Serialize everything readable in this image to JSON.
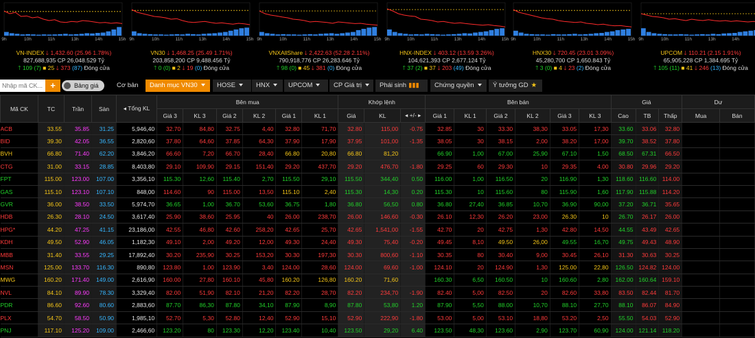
{
  "indices": [
    {
      "name": "VN-INDEX",
      "value": "1,432.60",
      "change": "(25.96 1.78%)",
      "vol": "827,688,935",
      "cp": "CP 26,048.529 Tỷ",
      "adv": "109",
      "adv2": "(7)",
      "ref": "25",
      "dec": "373",
      "dec2": "(87)",
      "status": "Đóng cửa",
      "ref_level": 0.22,
      "series": [
        0.2,
        0.3,
        0.25,
        0.4,
        0.38,
        0.45,
        0.42,
        0.5,
        0.55,
        0.52,
        0.6,
        0.62,
        0.58,
        0.6,
        0.55,
        0.57,
        0.6,
        0.63,
        0.62,
        0.65,
        0.63,
        0.66
      ],
      "bars": [
        0.3,
        0.2,
        0.15,
        0.1,
        0.12,
        0.1,
        0.08,
        0.1,
        0.09,
        0.1,
        0.12,
        0.15,
        0.1,
        0.12,
        0.15,
        0.2,
        0.18,
        0.22,
        0.25,
        0.35,
        0.5,
        0.7
      ]
    },
    {
      "name": "VN30",
      "value": "1,468.25",
      "change": "(25.49 1.71%)",
      "vol": "203,858,200",
      "cp": "CP 9,488.456 Tỷ",
      "adv": "0",
      "adv2": "(0)",
      "ref": "2",
      "dec": "19",
      "dec2": "(0)",
      "status": "Đóng cửa",
      "ref_level": 0.18,
      "series": [
        0.15,
        0.25,
        0.3,
        0.35,
        0.4,
        0.42,
        0.45,
        0.5,
        0.48,
        0.55,
        0.6,
        0.62,
        0.6,
        0.58,
        0.62,
        0.65,
        0.63,
        0.66,
        0.68,
        0.65,
        0.67,
        0.7
      ],
      "bars": [
        0.35,
        0.2,
        0.15,
        0.12,
        0.1,
        0.1,
        0.08,
        0.1,
        0.12,
        0.1,
        0.15,
        0.12,
        0.1,
        0.15,
        0.18,
        0.2,
        0.25,
        0.3,
        0.4,
        0.5,
        0.6,
        0.65
      ]
    },
    {
      "name": "VNXAllShare",
      "value": "2,422.63",
      "change": "(52.28 2.11%)",
      "vol": "790,918,776",
      "cp": "CP 26,283.646 Tỷ",
      "adv": "98",
      "adv2": "(0)",
      "ref": "45",
      "dec": "381",
      "dec2": "(0)",
      "status": "Đóng cửa",
      "ref_level": 0.2,
      "series": [
        0.2,
        0.3,
        0.35,
        0.38,
        0.42,
        0.45,
        0.5,
        0.52,
        0.55,
        0.6,
        0.58,
        0.6,
        0.62,
        0.65,
        0.6,
        0.62,
        0.64,
        0.66,
        0.65,
        0.68,
        0.7,
        0.72
      ],
      "bars": [
        0.3,
        0.2,
        0.15,
        0.1,
        0.12,
        0.1,
        0.1,
        0.08,
        0.1,
        0.12,
        0.1,
        0.15,
        0.18,
        0.2,
        0.15,
        0.2,
        0.25,
        0.3,
        0.45,
        0.55,
        0.65,
        0.7
      ]
    },
    {
      "name": "HNX-INDEX",
      "value": "403.12",
      "change": "(13.59 3.26%)",
      "vol": "104,621,393",
      "cp": "CP 2,677.124 Tỷ",
      "adv": "37",
      "adv2": "(2)",
      "ref": "37",
      "dec": "203",
      "dec2": "(49)",
      "status": "Đóng cửa",
      "ref_level": 0.15,
      "series": [
        0.12,
        0.2,
        0.3,
        0.35,
        0.38,
        0.4,
        0.5,
        0.52,
        0.55,
        0.6,
        0.58,
        0.62,
        0.65,
        0.63,
        0.66,
        0.68,
        0.7,
        0.72,
        0.7,
        0.73,
        0.75,
        0.78
      ],
      "bars": [
        0.5,
        0.3,
        0.2,
        0.15,
        0.1,
        0.12,
        0.1,
        0.15,
        0.12,
        0.1,
        0.08,
        0.1,
        0.12,
        0.15,
        0.2,
        0.18,
        0.25,
        0.3,
        0.35,
        0.45,
        0.55,
        0.6
      ]
    },
    {
      "name": "HNX30",
      "value": "720.45",
      "change": "(23.01 3.09%)",
      "vol": "45,280,700",
      "cp": "CP 1,650.843 Tỷ",
      "adv": "3",
      "adv2": "(0)",
      "ref": "4",
      "dec": "23",
      "dec2": "(2)",
      "status": "Đóng cửa",
      "ref_level": 0.18,
      "series": [
        0.15,
        0.25,
        0.3,
        0.35,
        0.4,
        0.45,
        0.48,
        0.5,
        0.55,
        0.58,
        0.6,
        0.62,
        0.6,
        0.65,
        0.67,
        0.7,
        0.68,
        0.72,
        0.74,
        0.73,
        0.76,
        0.78
      ],
      "bars": [
        0.4,
        0.25,
        0.15,
        0.12,
        0.1,
        0.1,
        0.08,
        0.12,
        0.1,
        0.1,
        0.12,
        0.15,
        0.1,
        0.12,
        0.15,
        0.2,
        0.22,
        0.3,
        0.35,
        0.45,
        0.5,
        0.55
      ]
    },
    {
      "name": "UPCOM",
      "value": "110.21",
      "change": "(2.15 1.91%)",
      "vol": "65,905,228",
      "cp": "CP 1,384.695 Tỷ",
      "adv": "105",
      "adv2": "(11)",
      "ref": "41",
      "dec": "246",
      "dec2": "(13)",
      "status": "Đóng cửa",
      "ref_level": 0.3,
      "series": [
        0.3,
        0.35,
        0.4,
        0.42,
        0.45,
        0.5,
        0.48,
        0.52,
        0.55,
        0.5,
        0.53,
        0.55,
        0.52,
        0.55,
        0.57,
        0.55,
        0.58,
        0.56,
        0.58,
        0.6,
        0.58,
        0.6
      ],
      "bars": [
        0.6,
        0.3,
        0.2,
        0.15,
        0.12,
        0.1,
        0.1,
        0.12,
        0.1,
        0.08,
        0.1,
        0.12,
        0.1,
        0.15,
        0.12,
        0.18,
        0.2,
        0.22,
        0.3,
        0.35,
        0.4,
        0.45
      ]
    }
  ],
  "axis_labels": [
    "9h",
    "10h",
    "11h",
    "13h",
    "14h",
    "15h"
  ],
  "toolbar": {
    "search_placeholder": "Nhập mã CK...",
    "plus": "+",
    "toggle": "Bảng giá",
    "basic": "Cơ bản",
    "tabs": [
      "Danh mục VN30",
      "HOSE",
      "HNX",
      "UPCOM",
      "CP Giá trị",
      "Phái sinh",
      "Chứng quyền",
      "Ý tưởng GD"
    ]
  },
  "headers": {
    "g1": [
      "Mã CK",
      "TC",
      "Trần",
      "Sàn",
      "Tổng KL"
    ],
    "groups": [
      "Bên mua",
      "Khớp lệnh",
      "Bên bán",
      "Giá",
      "Dư"
    ],
    "buy": [
      "Giá 3",
      "KL 3",
      "Giá 2",
      "KL 2",
      "Giá 1",
      "KL 1"
    ],
    "match": [
      "Giá",
      "KL",
      "+/-"
    ],
    "sell": [
      "Giá 1",
      "KL 1",
      "Giá 2",
      "KL 2",
      "Giá 3",
      "KL 3"
    ],
    "price": [
      "Cao",
      "TB",
      "Thấp"
    ],
    "du": [
      "Mua",
      "Bán"
    ]
  },
  "rows": [
    [
      "ACB",
      "33.55",
      "35.85",
      "31.25",
      "5,946,40",
      "32.70",
      "84,80",
      "32.75",
      "4,40",
      "32.80",
      "71,70",
      "32.80",
      "115,00",
      "-0.75",
      "32.85",
      "30",
      "33.30",
      "38,30",
      "33.05",
      "17,30",
      "33.60",
      "33.06",
      "32.80"
    ],
    [
      "BID",
      "39.30",
      "42.05",
      "36.55",
      "2,820,60",
      "37.80",
      "64,60",
      "37.85",
      "64,30",
      "37.90",
      "17,90",
      "37.95",
      "101,00",
      "-1.35",
      "38.05",
      "30",
      "38.15",
      "2,00",
      "38.20",
      "17,00",
      "39.70",
      "38.52",
      "37.80"
    ],
    [
      "BVH",
      "66.80",
      "71.40",
      "62.20",
      "3,846,20",
      "66.60",
      "7,20",
      "66.70",
      "28,40",
      "66.80",
      "20,80",
      "66.80",
      "81,20",
      "",
      "66.90",
      "1,00",
      "67.00",
      "25,90",
      "67.10",
      "1,50",
      "68.50",
      "67.31",
      "66.50"
    ],
    [
      "CTG",
      "31.00",
      "33.15",
      "28.85",
      "8,403,80",
      "29.10",
      "109,90",
      "29.15",
      "151,40",
      "29.20",
      "437,70",
      "29.20",
      "476,70",
      "-1.80",
      "29.25",
      "60",
      "29.30",
      "10",
      "29.35",
      "4,00",
      "30.80",
      "29.96",
      "29.20"
    ],
    [
      "FPT",
      "115.00",
      "123.00",
      "107.00",
      "3,356,10",
      "115.30",
      "12,60",
      "115.40",
      "2,70",
      "115.50",
      "29,10",
      "115.50",
      "344,40",
      "0.50",
      "116.00",
      "1,00",
      "116.50",
      "20",
      "116.90",
      "1,30",
      "118.60",
      "116.60",
      "114.00"
    ],
    [
      "GAS",
      "115.10",
      "123.10",
      "107.10",
      "848,00",
      "114.60",
      "90",
      "115.00",
      "13,50",
      "115.10",
      "2,40",
      "115.30",
      "14,30",
      "0.20",
      "115.30",
      "10",
      "115.60",
      "80",
      "115.90",
      "1,60",
      "117.90",
      "115.88",
      "114.20"
    ],
    [
      "GVR",
      "36.00",
      "38.50",
      "33.50",
      "5,974,70",
      "36.65",
      "1,00",
      "36.70",
      "53,60",
      "36.75",
      "1,80",
      "36.80",
      "56,50",
      "0.80",
      "36.80",
      "27,40",
      "36.85",
      "10,70",
      "36.90",
      "90,00",
      "37.20",
      "36.71",
      "35.65"
    ],
    [
      "HDB",
      "26.30",
      "28.10",
      "24.50",
      "3,617,40",
      "25.90",
      "38,60",
      "25.95",
      "40",
      "26.00",
      "238,70",
      "26.00",
      "146,60",
      "-0.30",
      "26.10",
      "12,30",
      "26.20",
      "23,00",
      "26.30",
      "10",
      "26.70",
      "26.17",
      "26.00"
    ],
    [
      "HPG*",
      "44.20",
      "47.25",
      "41.15",
      "23,186,00",
      "42.55",
      "46,80",
      "42.60",
      "258,20",
      "42.65",
      "25,70",
      "42.65",
      "1,541,00",
      "-1.55",
      "42.70",
      "20",
      "42.75",
      "1,30",
      "42.80",
      "14,50",
      "44.55",
      "43.49",
      "42.65"
    ],
    [
      "KDH",
      "49.50",
      "52.90",
      "46.05",
      "1,182,30",
      "49.10",
      "2,00",
      "49.20",
      "12,00",
      "49.30",
      "24,40",
      "49.30",
      "75,40",
      "-0.20",
      "49.45",
      "8,10",
      "49.50",
      "26,00",
      "49.55",
      "16,70",
      "49.75",
      "49.43",
      "48.90"
    ],
    [
      "MBB",
      "31.40",
      "33.55",
      "29.25",
      "17,892,40",
      "30.20",
      "235,90",
      "30.25",
      "153,20",
      "30.30",
      "197,30",
      "30.30",
      "800,60",
      "-1.10",
      "30.35",
      "80",
      "30.40",
      "9,00",
      "30.45",
      "26,10",
      "31.30",
      "30.63",
      "30.25"
    ],
    [
      "MSN",
      "125.00",
      "133.70",
      "116.30",
      "890,80",
      "123.80",
      "1,00",
      "123.90",
      "3,40",
      "124.00",
      "28,60",
      "124.00",
      "69,60",
      "-1.00",
      "124.10",
      "20",
      "124.90",
      "1,30",
      "125.00",
      "22,80",
      "126.50",
      "124.82",
      "124.00"
    ],
    [
      "MWG",
      "160.20",
      "171.40",
      "149.00",
      "2,616,90",
      "160.00",
      "27,80",
      "160.10",
      "45,80",
      "160.20",
      "126,80",
      "160.20",
      "71,60",
      "",
      "160.30",
      "6,50",
      "160.50",
      "10",
      "160.60",
      "2,80",
      "162.00",
      "160.64",
      "159.10"
    ],
    [
      "NVL",
      "84.10",
      "89.90",
      "78.30",
      "3,329,40",
      "82.00",
      "51,90",
      "82.10",
      "21,20",
      "82.20",
      "28,70",
      "82.20",
      "234,70",
      "-1.90",
      "82.40",
      "5,00",
      "82.50",
      "20",
      "82.60",
      "33,80",
      "83.50",
      "82.44",
      "81.70"
    ],
    [
      "PDR",
      "86.60",
      "92.60",
      "80.60",
      "2,883,60",
      "87.70",
      "86,30",
      "87.80",
      "34,10",
      "87.90",
      "8,90",
      "87.80",
      "53,80",
      "1.20",
      "87.90",
      "5,50",
      "88.00",
      "10,70",
      "88.10",
      "27,70",
      "88.10",
      "86.07",
      "84.90"
    ],
    [
      "PLX",
      "54.70",
      "58.50",
      "50.90",
      "1,985,10",
      "52.70",
      "5,30",
      "52.80",
      "12,40",
      "52.90",
      "15,10",
      "52.90",
      "222,90",
      "-1.80",
      "53.00",
      "5,00",
      "53.10",
      "18,80",
      "53.20",
      "2,50",
      "55.50",
      "54.03",
      "52.90"
    ],
    [
      "PNJ",
      "117.10",
      "125.20",
      "109.00",
      "2,466,60",
      "123.20",
      "80",
      "123.30",
      "12,20",
      "123.40",
      "10,40",
      "123.50",
      "29,20",
      "6.40",
      "123.50",
      "48,30",
      "123.60",
      "2,90",
      "123.70",
      "60,90",
      "124.00",
      "121.14",
      "118.20"
    ]
  ]
}
